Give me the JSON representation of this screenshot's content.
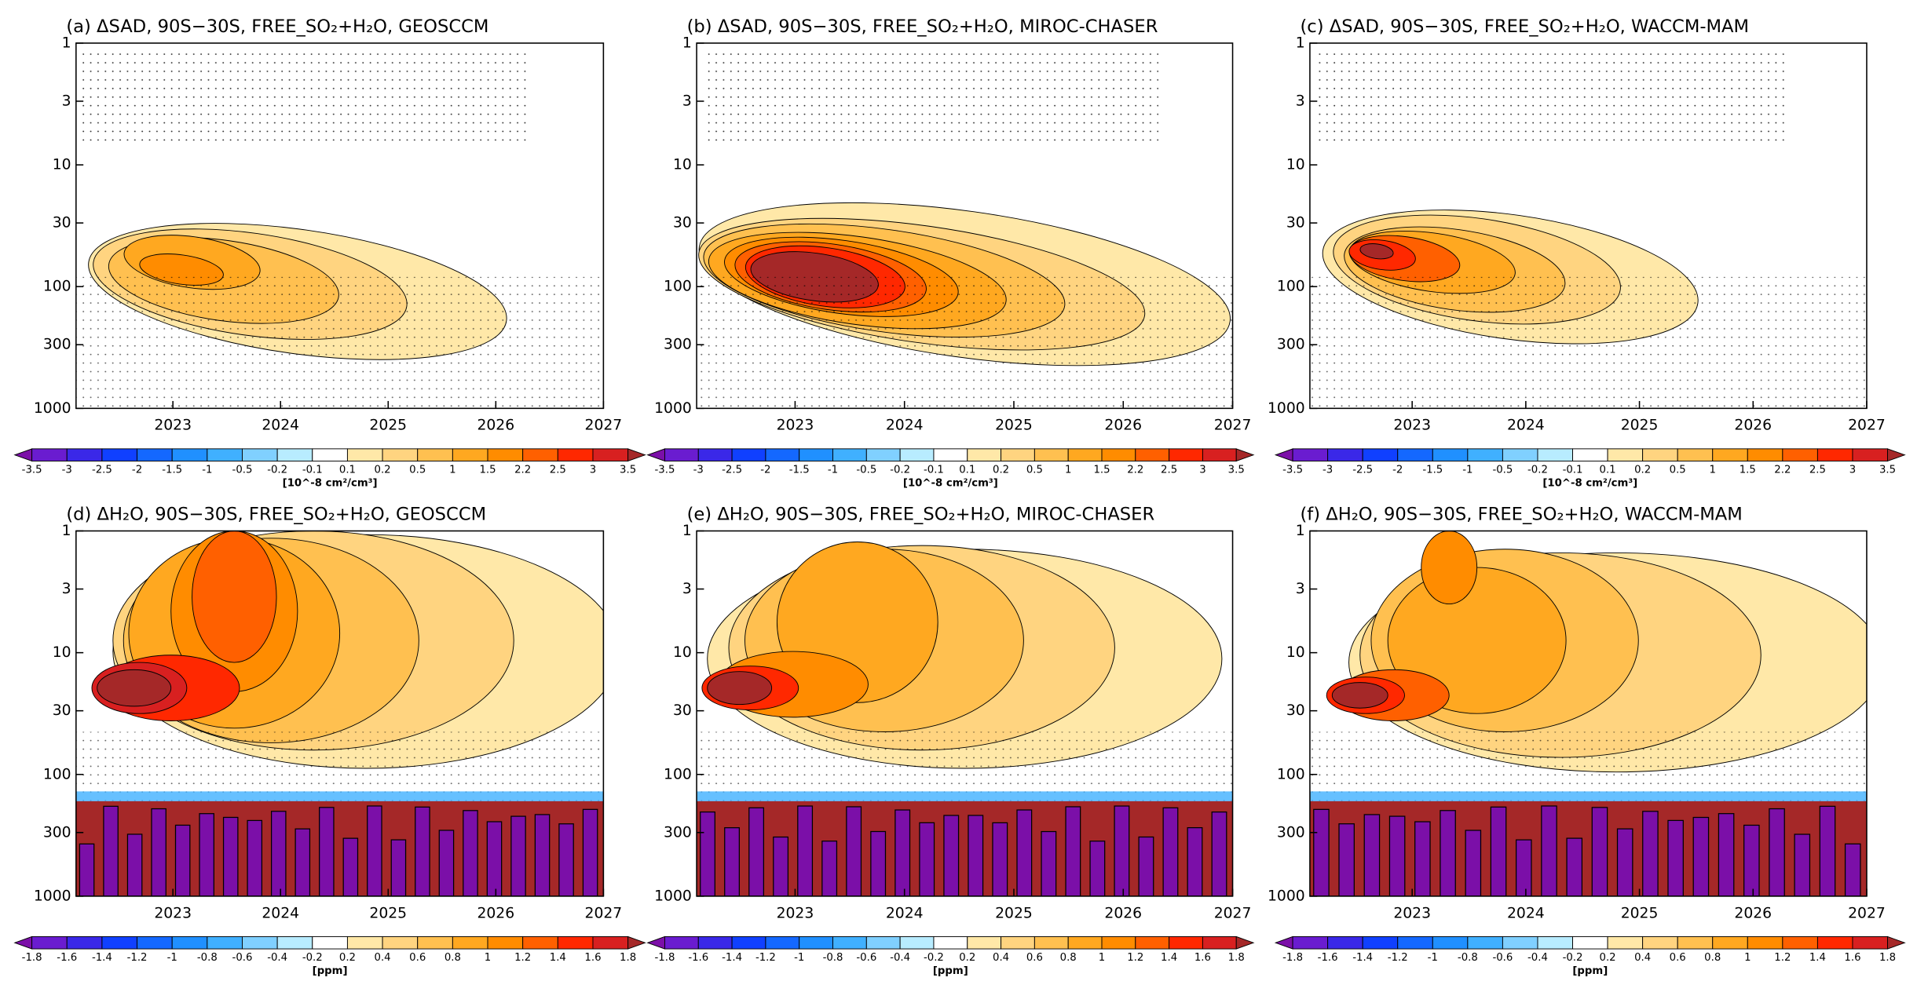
{
  "chart_data": [
    {
      "type": "contour",
      "title": "(a) ΔSAD, 90S−30S, FREE_SO₂+H₂O, GEOSCCM",
      "xlim": [
        2022.1,
        2027
      ],
      "xticks": [
        2023,
        2024,
        2025,
        2026,
        2027
      ],
      "ylim": [
        1000,
        1
      ],
      "yticks": [
        1,
        3,
        10,
        30,
        100,
        300,
        1000
      ],
      "log_y": true,
      "levels": [
        -3.5,
        -3,
        -2.5,
        -2,
        -1.5,
        -1,
        -0.5,
        -0.2,
        -0.1,
        0.1,
        0.2,
        0.5,
        1,
        1.5,
        2.2,
        2.5,
        3,
        3.5
      ],
      "colors": [
        "#7b0fa8",
        "#6a1cd0",
        "#3a28e8",
        "#1040ff",
        "#1468ff",
        "#2090ff",
        "#40b0ff",
        "#80d0ff",
        "#b8ecff",
        "#ffffff",
        "#ffe8a8",
        "#ffd480",
        "#ffc050",
        "#ffa820",
        "#ff8c00",
        "#ff6000",
        "#ff2800",
        "#d82020",
        "#a52828"
      ],
      "unit": "[10^-8 cm²/cm³]"
    },
    {
      "type": "contour",
      "title": "(b) ΔSAD, 90S−30S, FREE_SO₂+H₂O, MIROC-CHASER",
      "xlim": [
        2022.1,
        2027
      ],
      "xticks": [
        2023,
        2024,
        2025,
        2026,
        2027
      ],
      "ylim": [
        1000,
        1
      ],
      "yticks": [
        1,
        3,
        10,
        30,
        100,
        300,
        1000
      ],
      "log_y": true,
      "levels": [
        -3.5,
        -3,
        -2.5,
        -2,
        -1.5,
        -1,
        -0.5,
        -0.2,
        -0.1,
        0.1,
        0.2,
        0.5,
        1,
        1.5,
        2.2,
        2.5,
        3,
        3.5
      ],
      "colors": [
        "#7b0fa8",
        "#6a1cd0",
        "#3a28e8",
        "#1040ff",
        "#1468ff",
        "#2090ff",
        "#40b0ff",
        "#80d0ff",
        "#b8ecff",
        "#ffffff",
        "#ffe8a8",
        "#ffd480",
        "#ffc050",
        "#ffa820",
        "#ff8c00",
        "#ff6000",
        "#ff2800",
        "#d82020",
        "#a52828"
      ],
      "unit": "[10^-8 cm²/cm³]"
    },
    {
      "type": "contour",
      "title": "(c) ΔSAD, 90S−30S, FREE_SO₂+H₂O, WACCM-MAM",
      "xlim": [
        2022.1,
        2027
      ],
      "xticks": [
        2023,
        2024,
        2025,
        2026,
        2027
      ],
      "ylim": [
        1000,
        1
      ],
      "yticks": [
        1,
        3,
        10,
        30,
        100,
        300,
        1000
      ],
      "log_y": true,
      "levels": [
        -3.5,
        -3,
        -2.5,
        -2,
        -1.5,
        -1,
        -0.5,
        -0.2,
        -0.1,
        0.1,
        0.2,
        0.5,
        1,
        1.5,
        2.2,
        2.5,
        3,
        3.5
      ],
      "colors": [
        "#7b0fa8",
        "#6a1cd0",
        "#3a28e8",
        "#1040ff",
        "#1468ff",
        "#2090ff",
        "#40b0ff",
        "#80d0ff",
        "#b8ecff",
        "#ffffff",
        "#ffe8a8",
        "#ffd480",
        "#ffc050",
        "#ffa820",
        "#ff8c00",
        "#ff6000",
        "#ff2800",
        "#d82020",
        "#a52828"
      ],
      "unit": "[10^-8 cm²/cm³]"
    },
    {
      "type": "contour",
      "title": "(d) ΔH₂O, 90S−30S, FREE_SO₂+H₂O, GEOSCCM",
      "xlim": [
        2022.1,
        2027
      ],
      "xticks": [
        2023,
        2024,
        2025,
        2026,
        2027
      ],
      "ylim": [
        1000,
        1
      ],
      "yticks": [
        1,
        3,
        10,
        30,
        100,
        300,
        1000
      ],
      "log_y": true,
      "levels": [
        -1.8,
        -1.6,
        -1.4,
        -1.2,
        -1,
        -0.8,
        -0.6,
        -0.4,
        -0.2,
        0.2,
        0.4,
        0.6,
        0.8,
        1,
        1.2,
        1.4,
        1.6,
        1.8
      ],
      "colors": [
        "#7b0fa8",
        "#6a1cd0",
        "#3a28e8",
        "#1040ff",
        "#1468ff",
        "#2090ff",
        "#40b0ff",
        "#80d0ff",
        "#b8ecff",
        "#ffffff",
        "#ffe8a8",
        "#ffd480",
        "#ffc050",
        "#ffa820",
        "#ff8c00",
        "#ff6000",
        "#ff2800",
        "#d82020",
        "#a52828"
      ],
      "unit": "[ppm]"
    },
    {
      "type": "contour",
      "title": "(e) ΔH₂O, 90S−30S, FREE_SO₂+H₂O, MIROC-CHASER",
      "xlim": [
        2022.1,
        2027
      ],
      "xticks": [
        2023,
        2024,
        2025,
        2026,
        2027
      ],
      "ylim": [
        1000,
        1
      ],
      "yticks": [
        1,
        3,
        10,
        30,
        100,
        300,
        1000
      ],
      "log_y": true,
      "levels": [
        -1.8,
        -1.6,
        -1.4,
        -1.2,
        -1,
        -0.8,
        -0.6,
        -0.4,
        -0.2,
        0.2,
        0.4,
        0.6,
        0.8,
        1,
        1.2,
        1.4,
        1.6,
        1.8
      ],
      "colors": [
        "#7b0fa8",
        "#6a1cd0",
        "#3a28e8",
        "#1040ff",
        "#1468ff",
        "#2090ff",
        "#40b0ff",
        "#80d0ff",
        "#b8ecff",
        "#ffffff",
        "#ffe8a8",
        "#ffd480",
        "#ffc050",
        "#ffa820",
        "#ff8c00",
        "#ff6000",
        "#ff2800",
        "#d82020",
        "#a52828"
      ],
      "unit": "[ppm]"
    },
    {
      "type": "contour",
      "title": "(f) ΔH₂O, 90S−30S, FREE_SO₂+H₂O, WACCM-MAM",
      "xlim": [
        2022.1,
        2027
      ],
      "xticks": [
        2023,
        2024,
        2025,
        2026,
        2027
      ],
      "ylim": [
        1000,
        1
      ],
      "yticks": [
        1,
        3,
        10,
        30,
        100,
        300,
        1000
      ],
      "log_y": true,
      "levels": [
        -1.8,
        -1.6,
        -1.4,
        -1.2,
        -1,
        -0.8,
        -0.6,
        -0.4,
        -0.2,
        0.2,
        0.4,
        0.6,
        0.8,
        1,
        1.2,
        1.4,
        1.6,
        1.8
      ],
      "colors": [
        "#7b0fa8",
        "#6a1cd0",
        "#3a28e8",
        "#1040ff",
        "#1468ff",
        "#2090ff",
        "#40b0ff",
        "#80d0ff",
        "#b8ecff",
        "#ffffff",
        "#ffe8a8",
        "#ffd480",
        "#ffc050",
        "#ffa820",
        "#ff8c00",
        "#ff6000",
        "#ff2800",
        "#d82020",
        "#a52828"
      ],
      "unit": "[ppm]"
    }
  ]
}
